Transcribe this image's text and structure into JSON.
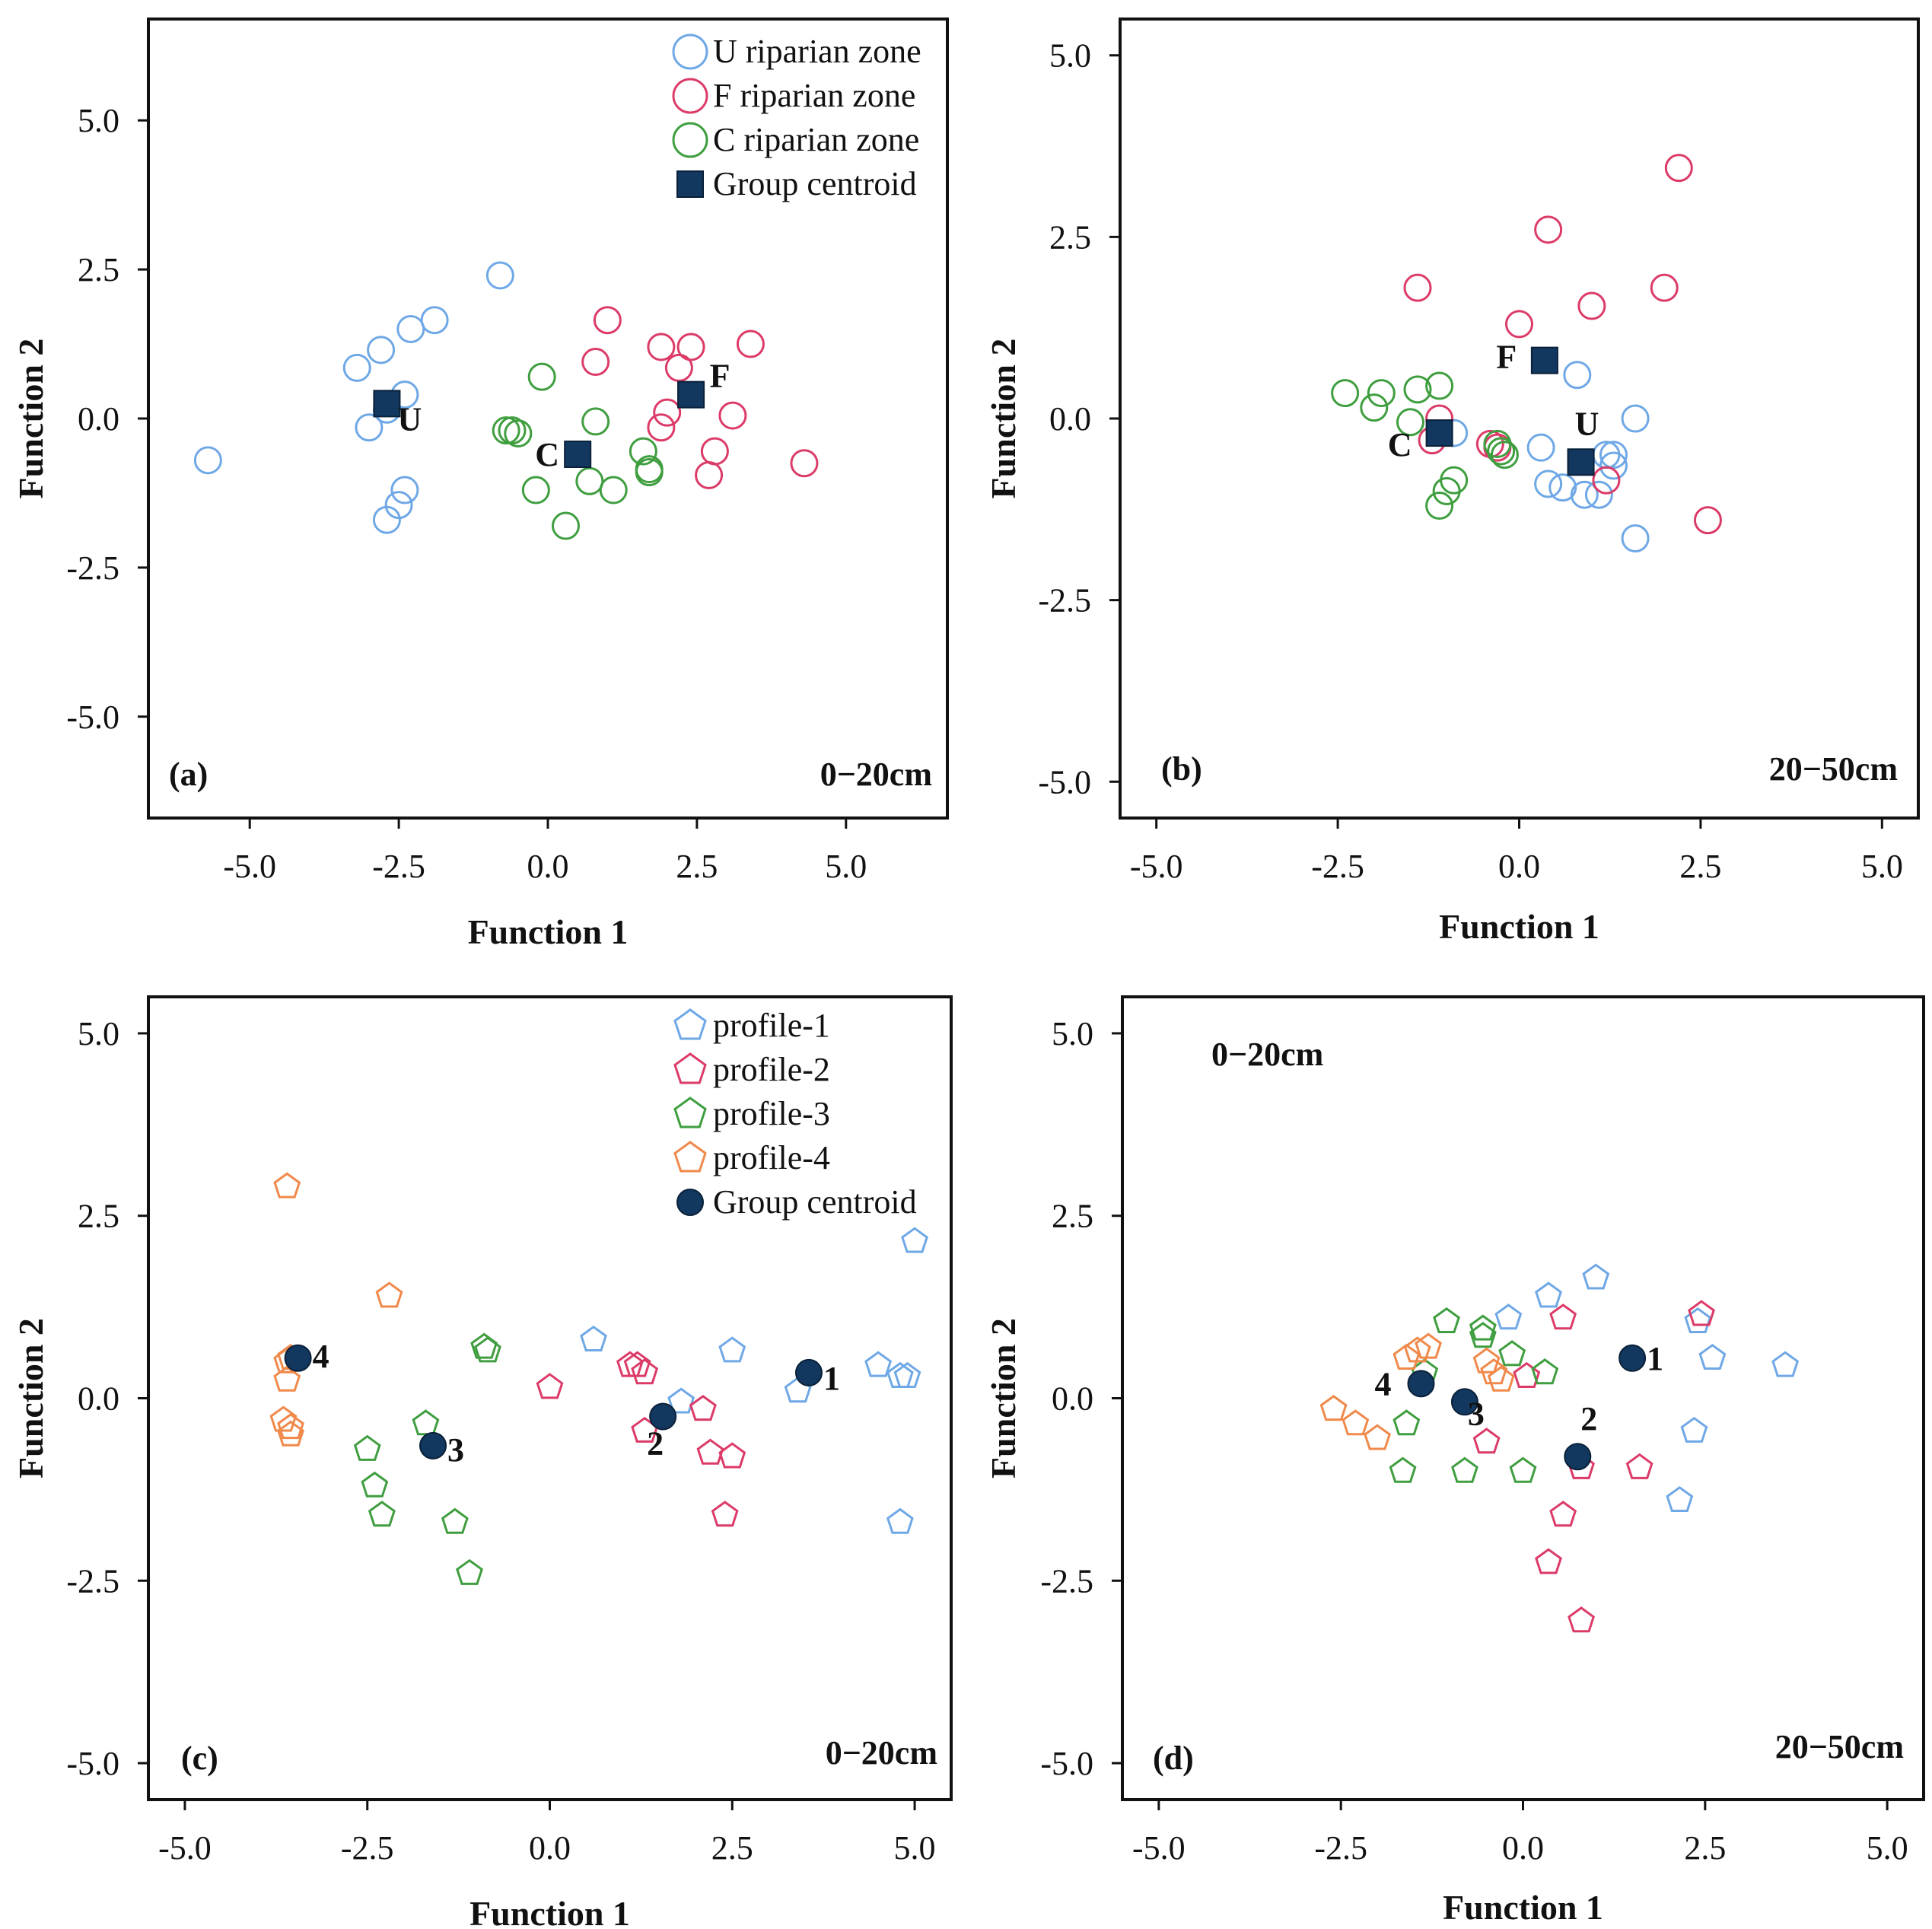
{
  "figure": {
    "colors": {
      "U": "#6fa8e6",
      "F": "#dc3b68",
      "C": "#3f9e3f",
      "profile_1": "#6fa8e6",
      "profile_2": "#dc3b68",
      "profile_3": "#3f9e3f",
      "profile_4": "#f0894a",
      "centroid": "#12385f"
    }
  },
  "chart_data": [
    {
      "type": "scatter",
      "panel_label": "(a)",
      "depth_label": "0−20cm",
      "xlabel": "Function 1",
      "ylabel": "Function 2",
      "xlim": [
        -6.7,
        6.7
      ],
      "ylim": [
        -6.7,
        6.7
      ],
      "xticks": [
        "-5.0",
        "-2.5",
        "0.0",
        "2.5",
        "5.0"
      ],
      "yticks": [
        "5.0",
        "2.5",
        "0.0",
        "-2.5",
        "-5.0"
      ],
      "legend": [
        "U riparian zone",
        "F riparian zone",
        "C riparian zone",
        "Group centroid"
      ],
      "series": [
        {
          "name": "U riparian zone",
          "color_key": "U",
          "marker": "circle",
          "x": [
            -5.7,
            -0.8,
            -1.9,
            -2.3,
            -2.8,
            -3.2,
            -2.4,
            -3.0,
            -2.7,
            -2.4,
            -2.5,
            -2.7
          ],
          "y": [
            -0.7,
            2.4,
            1.65,
            1.5,
            1.15,
            0.85,
            0.4,
            -0.15,
            0.15,
            -1.2,
            -1.45,
            -1.7
          ]
        },
        {
          "name": "F riparian zone",
          "color_key": "F",
          "marker": "circle",
          "x": [
            1.0,
            0.8,
            1.9,
            2.4,
            3.4,
            2.2,
            2.0,
            1.9,
            3.1,
            2.8,
            2.7,
            4.3
          ],
          "y": [
            1.65,
            0.95,
            1.2,
            1.2,
            1.25,
            0.85,
            0.1,
            -0.15,
            0.05,
            -0.55,
            -0.95,
            -0.75
          ]
        },
        {
          "name": "C riparian zone",
          "color_key": "C",
          "marker": "circle",
          "x": [
            -0.1,
            0.8,
            -0.6,
            -0.7,
            -0.5,
            1.6,
            1.7,
            1.7,
            0.7,
            1.1,
            -0.2,
            0.3
          ],
          "y": [
            0.7,
            -0.05,
            -0.2,
            -0.2,
            -0.25,
            -0.55,
            -0.85,
            -0.9,
            -1.05,
            -1.2,
            -1.2,
            -1.8
          ]
        },
        {
          "name": "Group centroid",
          "color_key": "centroid",
          "marker": "square",
          "labels": [
            "U",
            "F",
            "C"
          ],
          "x": [
            -2.7,
            2.4,
            0.5
          ],
          "y": [
            0.25,
            0.4,
            -0.6
          ]
        }
      ]
    },
    {
      "type": "scatter",
      "panel_label": "(b)",
      "depth_label": "20−50cm",
      "xlabel": "Function 1",
      "ylabel": "Function 2",
      "xlim": [
        -5.5,
        5.5
      ],
      "ylim": [
        -5.5,
        5.5
      ],
      "xticks": [
        "-5.0",
        "-2.5",
        "0.0",
        "2.5",
        "5.0"
      ],
      "yticks": [
        "5.0",
        "2.5",
        "0.0",
        "-2.5",
        "-5.0"
      ],
      "series": [
        {
          "name": "U riparian zone",
          "color_key": "U",
          "marker": "circle",
          "x": [
            0.8,
            1.6,
            1.3,
            1.2,
            1.3,
            0.3,
            0.4,
            0.6,
            0.9,
            1.1,
            1.6,
            -0.9
          ],
          "y": [
            0.6,
            0.0,
            -0.5,
            -0.5,
            -0.65,
            -0.4,
            -0.9,
            -0.95,
            -1.05,
            -1.05,
            -1.65,
            -0.2
          ]
        },
        {
          "name": "F riparian zone",
          "color_key": "F",
          "marker": "circle",
          "x": [
            2.2,
            0.4,
            -1.4,
            1.0,
            2.0,
            0.0,
            -1.1,
            -1.2,
            -0.4,
            -0.3,
            1.2,
            2.6
          ],
          "y": [
            3.45,
            2.6,
            1.8,
            1.55,
            1.8,
            1.3,
            0.0,
            -0.3,
            -0.35,
            -0.4,
            -0.85,
            -1.4
          ]
        },
        {
          "name": "C riparian zone",
          "color_key": "C",
          "marker": "circle",
          "x": [
            -2.4,
            -1.9,
            -1.4,
            -1.1,
            -2.0,
            -1.5,
            -0.3,
            -0.25,
            -0.2,
            -0.9,
            -1.0,
            -1.1
          ],
          "y": [
            0.35,
            0.35,
            0.4,
            0.45,
            0.15,
            -0.05,
            -0.35,
            -0.45,
            -0.5,
            -0.85,
            -1.0,
            -1.2
          ]
        },
        {
          "name": "Group centroid",
          "color_key": "centroid",
          "marker": "square",
          "labels": [
            "F",
            "C",
            "U"
          ],
          "x": [
            0.35,
            -1.1,
            0.85
          ],
          "y": [
            0.8,
            -0.2,
            -0.6
          ]
        }
      ]
    },
    {
      "type": "scatter",
      "panel_label": "(c)",
      "depth_label": "0−20cm",
      "xlabel": "Function 1",
      "ylabel": "Function 2",
      "xlim": [
        -5.5,
        5.5
      ],
      "ylim": [
        -5.5,
        5.5
      ],
      "xticks": [
        "-5.0",
        "-2.5",
        "0.0",
        "2.5",
        "5.0"
      ],
      "yticks": [
        "5.0",
        "2.5",
        "0.0",
        "-2.5",
        "-5.0"
      ],
      "legend": [
        "profile-1",
        "profile-2",
        "profile-3",
        "profile-4",
        "Group centroid"
      ],
      "series": [
        {
          "name": "profile-1",
          "color_key": "profile_1",
          "marker": "pentagon",
          "x": [
            5.0,
            0.6,
            2.5,
            4.5,
            4.8,
            4.9,
            3.4,
            1.8,
            4.8
          ],
          "y": [
            2.15,
            0.8,
            0.65,
            0.45,
            0.3,
            0.3,
            0.1,
            -0.05,
            -1.7
          ]
        },
        {
          "name": "profile-2",
          "color_key": "profile_2",
          "marker": "pentagon",
          "x": [
            0.0,
            1.1,
            1.2,
            1.3,
            2.1,
            1.3,
            2.2,
            2.5,
            2.4
          ],
          "y": [
            0.15,
            0.45,
            0.45,
            0.35,
            -0.15,
            -0.45,
            -0.75,
            -0.8,
            -1.6
          ]
        },
        {
          "name": "profile-3",
          "color_key": "profile_3",
          "marker": "pentagon",
          "x": [
            -0.9,
            -0.85,
            -1.7,
            -2.5,
            -2.4,
            -2.3,
            -1.3,
            -1.1
          ],
          "y": [
            0.7,
            0.65,
            -0.35,
            -0.7,
            -1.2,
            -1.6,
            -1.7,
            -2.4
          ]
        },
        {
          "name": "profile-4",
          "color_key": "profile_4",
          "marker": "pentagon",
          "x": [
            -3.6,
            -2.2,
            -3.55,
            -3.6,
            -3.6,
            -3.65,
            -3.55,
            -3.55
          ],
          "y": [
            2.9,
            1.4,
            0.55,
            0.5,
            0.25,
            -0.3,
            -0.4,
            -0.5
          ]
        },
        {
          "name": "Group centroid",
          "color_key": "centroid",
          "marker": "dot",
          "labels": [
            "1",
            "2",
            "3",
            "4"
          ],
          "x": [
            3.55,
            1.55,
            -1.6,
            -3.45
          ],
          "y": [
            0.35,
            -0.25,
            -0.65,
            0.55
          ]
        }
      ]
    },
    {
      "type": "scatter",
      "panel_label": "(d)",
      "depth_label": "20−50cm",
      "secondary_label": "0−20cm",
      "xlabel": "Function 1",
      "ylabel": "Function 2",
      "xlim": [
        -5.5,
        5.5
      ],
      "ylim": [
        -5.5,
        5.5
      ],
      "xticks": [
        "-5.0",
        "-2.5",
        "0.0",
        "2.5",
        "5.0"
      ],
      "yticks": [
        "5.0",
        "2.5",
        "0.0",
        "-2.5",
        "-5.0"
      ],
      "series": [
        {
          "name": "profile-1",
          "color_key": "profile_1",
          "marker": "pentagon",
          "x": [
            1.0,
            0.35,
            -0.2,
            2.4,
            2.6,
            3.6,
            2.35,
            2.15
          ],
          "y": [
            1.65,
            1.4,
            1.1,
            1.05,
            0.55,
            0.45,
            -0.45,
            -1.4
          ]
        },
        {
          "name": "profile-2",
          "color_key": "profile_2",
          "marker": "pentagon",
          "x": [
            2.45,
            0.55,
            0.05,
            -0.5,
            1.6,
            0.8,
            0.55,
            0.35,
            0.8
          ],
          "y": [
            1.15,
            1.1,
            0.3,
            -0.6,
            -0.95,
            -0.95,
            -1.6,
            -2.25,
            -3.05
          ]
        },
        {
          "name": "profile-3",
          "color_key": "profile_3",
          "marker": "pentagon",
          "x": [
            -1.05,
            -0.55,
            -0.55,
            -0.15,
            0.3,
            -1.35,
            -1.6,
            -1.65,
            -0.8,
            0.0
          ],
          "y": [
            1.05,
            0.95,
            0.85,
            0.6,
            0.35,
            0.35,
            -0.35,
            -1.0,
            -1.0,
            -1.0
          ]
        },
        {
          "name": "profile-4",
          "color_key": "profile_4",
          "marker": "pentagon",
          "x": [
            -1.3,
            -1.45,
            -1.6,
            -0.5,
            -0.4,
            -0.3,
            -2.6,
            -2.3,
            -2.0
          ],
          "y": [
            0.7,
            0.65,
            0.55,
            0.5,
            0.35,
            0.25,
            -0.15,
            -0.35,
            -0.55
          ]
        },
        {
          "name": "Group centroid",
          "color_key": "centroid",
          "marker": "dot",
          "labels": [
            "1",
            "2",
            "3",
            "4"
          ],
          "x": [
            1.5,
            0.75,
            -0.8,
            -1.4
          ],
          "y": [
            0.55,
            -0.8,
            -0.05,
            0.2
          ]
        }
      ]
    }
  ]
}
